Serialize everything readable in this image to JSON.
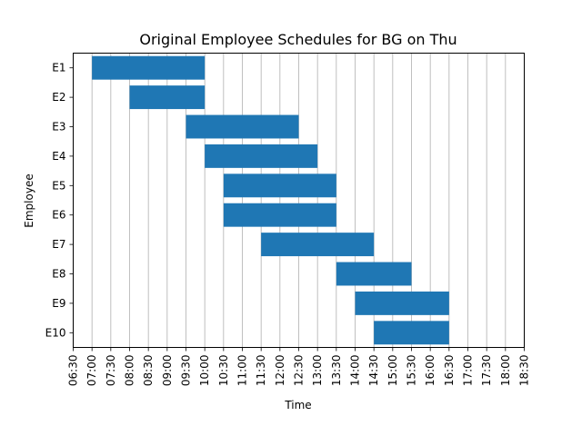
{
  "chart_data": {
    "type": "bar",
    "orientation": "horizontal",
    "title": "Original Employee Schedules for BG on Thu",
    "xlabel": "Time",
    "ylabel": "Employee",
    "color": "#1f77b4",
    "grid": "vertical",
    "xlim": [
      "06:30",
      "18:30"
    ],
    "x_ticks": [
      "06:30",
      "07:00",
      "07:30",
      "08:00",
      "08:30",
      "09:00",
      "09:30",
      "10:00",
      "10:30",
      "11:00",
      "11:30",
      "12:00",
      "12:30",
      "13:00",
      "13:30",
      "14:00",
      "14:30",
      "15:00",
      "15:30",
      "16:00",
      "16:30",
      "17:00",
      "17:30",
      "18:00",
      "18:30"
    ],
    "categories": [
      "E1",
      "E2",
      "E3",
      "E4",
      "E5",
      "E6",
      "E7",
      "E8",
      "E9",
      "E10"
    ],
    "segments": [
      {
        "employee": "E1",
        "start": "07:00",
        "end": "10:00"
      },
      {
        "employee": "E2",
        "start": "08:00",
        "end": "10:00"
      },
      {
        "employee": "E3",
        "start": "09:30",
        "end": "12:30"
      },
      {
        "employee": "E4",
        "start": "10:00",
        "end": "13:00"
      },
      {
        "employee": "E5",
        "start": "10:30",
        "end": "13:30"
      },
      {
        "employee": "E6",
        "start": "10:30",
        "end": "13:30"
      },
      {
        "employee": "E7",
        "start": "11:30",
        "end": "14:30"
      },
      {
        "employee": "E8",
        "start": "13:30",
        "end": "15:30"
      },
      {
        "employee": "E9",
        "start": "14:00",
        "end": "16:30"
      },
      {
        "employee": "E10",
        "start": "14:30",
        "end": "16:30"
      }
    ]
  }
}
